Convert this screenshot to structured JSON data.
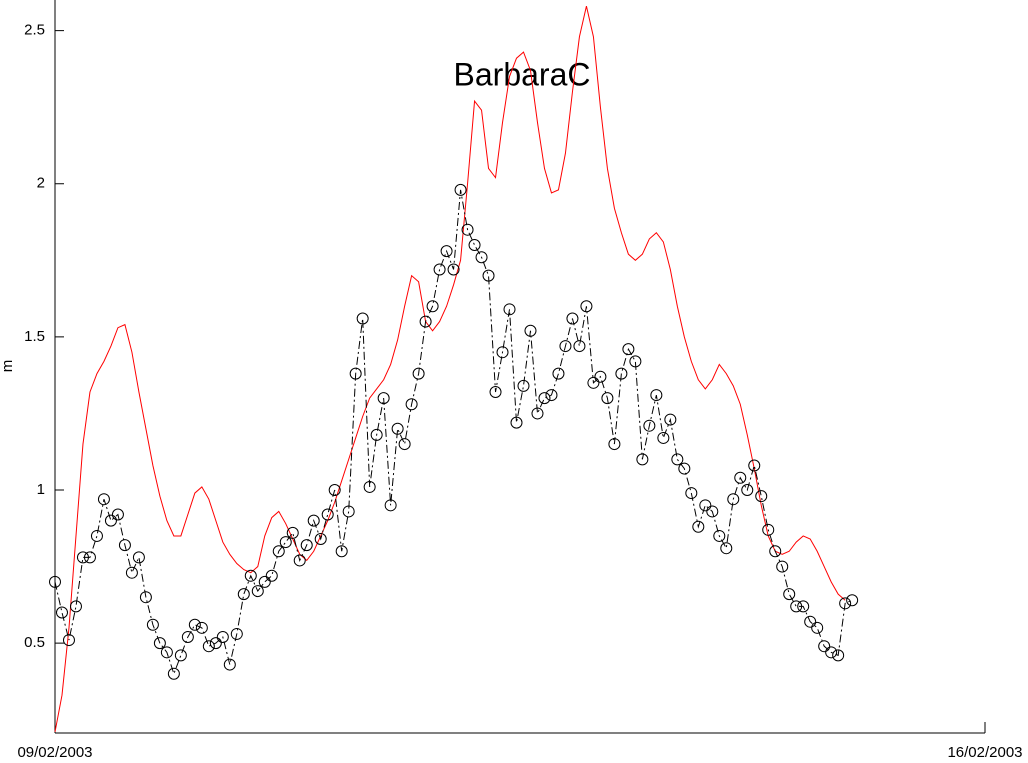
{
  "chart_data": {
    "type": "line",
    "title": "BarbaraC",
    "y_label": "m",
    "categories": [
      "09/02/2003",
      null,
      null,
      null,
      null,
      null,
      null,
      null,
      null,
      null,
      null,
      null,
      null,
      null,
      null,
      null,
      null,
      null,
      null,
      null,
      null,
      null,
      null,
      null,
      null,
      null,
      null,
      null,
      null,
      null,
      null,
      null,
      null,
      null,
      null,
      null,
      null,
      null,
      null,
      null,
      null,
      null,
      null,
      null,
      null,
      null,
      null,
      null,
      null,
      null,
      null,
      null,
      null,
      null,
      null,
      null,
      null,
      null,
      null,
      null,
      null,
      null,
      null,
      null,
      null,
      null,
      null,
      null,
      null,
      null,
      null,
      null,
      null,
      null,
      null,
      null,
      null,
      null,
      null,
      null,
      null,
      null,
      null,
      null,
      null,
      null,
      null,
      null,
      null,
      null,
      null,
      null,
      null,
      null,
      null,
      null,
      null,
      null,
      null,
      null,
      null,
      null,
      null,
      null,
      null,
      null,
      null,
      null,
      null,
      null,
      null,
      null,
      null,
      null,
      null,
      null,
      null,
      null,
      null,
      null,
      null,
      null,
      null,
      null,
      null,
      null,
      null,
      null,
      null,
      null,
      null,
      null,
      null,
      "16/02/2003"
    ],
    "series": [
      {
        "color": "#ff0000",
        "marker": "none",
        "line_style": "solid",
        "values": [
          0.21,
          0.33,
          0.55,
          0.85,
          1.15,
          1.32,
          1.38,
          1.42,
          1.47,
          1.53,
          1.54,
          1.45,
          1.32,
          1.2,
          1.08,
          0.98,
          0.9,
          0.85,
          0.85,
          0.92,
          0.99,
          1.01,
          0.97,
          0.9,
          0.83,
          0.79,
          0.76,
          0.74,
          0.73,
          0.75,
          0.85,
          0.91,
          0.93,
          0.89,
          0.84,
          0.79,
          0.77,
          0.8,
          0.85,
          0.9,
          0.96,
          1.03,
          1.1,
          1.17,
          1.24,
          1.3,
          1.33,
          1.36,
          1.41,
          1.49,
          1.6,
          1.7,
          1.68,
          1.55,
          1.52,
          1.55,
          1.6,
          1.67,
          1.75,
          2.0,
          2.27,
          2.24,
          2.05,
          2.02,
          2.2,
          2.35,
          2.41,
          2.43,
          2.37,
          2.2,
          2.05,
          1.97,
          1.98,
          2.1,
          2.3,
          2.48,
          2.58,
          2.48,
          2.25,
          2.05,
          1.92,
          1.84,
          1.77,
          1.75,
          1.77,
          1.82,
          1.84,
          1.81,
          1.72,
          1.6,
          1.5,
          1.42,
          1.36,
          1.33,
          1.36,
          1.41,
          1.38,
          1.34,
          1.28,
          1.18,
          1.07,
          0.95,
          0.85,
          0.8,
          0.79,
          0.8,
          0.83,
          0.85,
          0.84,
          0.8,
          0.75,
          0.7,
          0.66,
          0.64,
          null,
          null,
          null,
          null,
          null,
          null,
          null,
          null,
          null,
          null,
          null,
          null,
          null,
          null,
          null,
          null,
          null,
          null,
          null,
          null
        ]
      },
      {
        "color": "#000000",
        "marker": "circle",
        "line_style": "dashdot",
        "values": [
          0.7,
          0.6,
          0.51,
          0.62,
          0.78,
          0.78,
          0.85,
          0.97,
          0.9,
          0.92,
          0.82,
          0.73,
          0.78,
          0.65,
          0.56,
          0.5,
          0.47,
          0.4,
          0.46,
          0.52,
          0.56,
          0.55,
          0.49,
          0.5,
          0.52,
          0.43,
          0.53,
          0.66,
          0.72,
          0.67,
          0.7,
          0.72,
          0.8,
          0.83,
          0.86,
          0.77,
          0.82,
          0.9,
          0.84,
          0.92,
          1.0,
          0.8,
          0.93,
          1.38,
          1.56,
          1.01,
          1.18,
          1.3,
          0.95,
          1.2,
          1.15,
          1.28,
          1.38,
          1.55,
          1.6,
          1.72,
          1.78,
          1.72,
          1.98,
          1.85,
          1.8,
          1.76,
          1.7,
          1.32,
          1.45,
          1.59,
          1.22,
          1.34,
          1.52,
          1.25,
          1.3,
          1.31,
          1.38,
          1.47,
          1.56,
          1.47,
          1.6,
          1.35,
          1.37,
          1.3,
          1.15,
          1.38,
          1.46,
          1.42,
          1.1,
          1.21,
          1.31,
          1.17,
          1.23,
          1.1,
          1.07,
          0.99,
          0.88,
          0.95,
          0.93,
          0.85,
          0.81,
          0.97,
          1.04,
          1.0,
          1.08,
          0.98,
          0.87,
          0.8,
          0.75,
          0.66,
          0.62,
          0.62,
          0.57,
          0.55,
          0.49,
          0.47,
          0.46,
          0.63,
          0.64,
          null,
          null,
          null,
          null,
          null,
          null,
          null,
          null,
          null,
          null,
          null,
          null,
          null,
          null,
          null,
          null,
          null,
          null,
          null
        ]
      }
    ],
    "ylim": [
      0.2,
      2.6
    ],
    "yticks": [
      {
        "value": 0.5,
        "label": "0.5"
      },
      1,
      1.5,
      2,
      2.5
    ],
    "grid": false
  }
}
